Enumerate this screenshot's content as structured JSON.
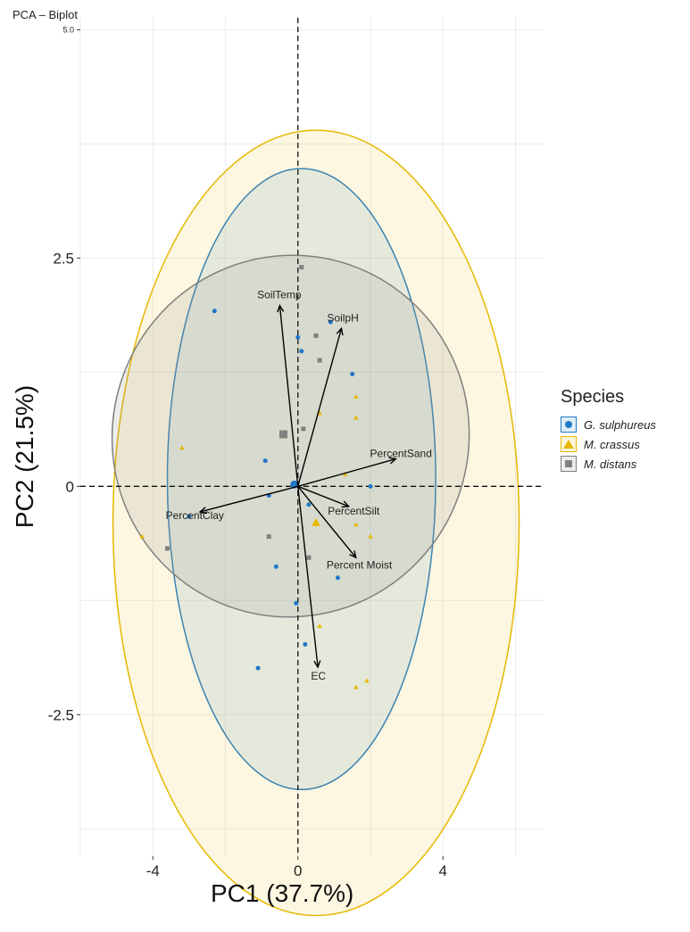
{
  "chart_data": {
    "type": "scatter",
    "subtype": "pca-biplot",
    "title": "PCA – Biplot",
    "xlabel": "PC1 (37.7%)",
    "ylabel": "PC2 (21.5%)",
    "xlim": [
      -6,
      6.8
    ],
    "ylim": [
      -4.05,
      5.15
    ],
    "x_ticks": [
      {
        "value": -4,
        "label": "-4"
      },
      {
        "value": 0,
        "label": "0"
      },
      {
        "value": 4,
        "label": "4"
      }
    ],
    "y_ticks": [
      {
        "value": -2.5,
        "label": "-2.5"
      },
      {
        "value": 0,
        "label": "0"
      },
      {
        "value": 2.5,
        "label": "2.5"
      },
      {
        "value": 5.0,
        "label": "5.0"
      }
    ],
    "grid": true,
    "reference_lines": {
      "x": 0,
      "y": 0,
      "style": "dashed"
    },
    "legend": {
      "title": "Species",
      "position": "right"
    },
    "series": [
      {
        "name": "G. sulphureus",
        "marker": "circle",
        "color": "#1f78c8",
        "mean": [
          -0.1,
          0.02
        ],
        "points": [
          [
            -2.3,
            1.92
          ],
          [
            0.0,
            1.63
          ],
          [
            0.1,
            1.48
          ],
          [
            0.9,
            1.8
          ],
          [
            1.5,
            1.23
          ],
          [
            -0.9,
            0.28
          ],
          [
            -0.8,
            -0.1
          ],
          [
            -3.0,
            -0.33
          ],
          [
            0.3,
            -0.2
          ],
          [
            2.0,
            0.0
          ],
          [
            1.1,
            -1.0
          ],
          [
            -0.6,
            -0.88
          ],
          [
            -0.05,
            -1.28
          ],
          [
            0.2,
            -1.73
          ],
          [
            -1.1,
            -1.99
          ]
        ],
        "ellipse": {
          "cx": 0.1,
          "cy": 0.08,
          "rx": 3.7,
          "ry": 3.4,
          "angle": 0
        }
      },
      {
        "name": "M. crassus",
        "marker": "triangle",
        "color": "#e6b800",
        "mean": [
          0.5,
          -0.4
        ],
        "points": [
          [
            -3.2,
            0.42
          ],
          [
            -4.3,
            -0.55
          ],
          [
            0.6,
            0.8
          ],
          [
            1.6,
            0.98
          ],
          [
            1.6,
            0.75
          ],
          [
            1.3,
            0.13
          ],
          [
            1.6,
            -0.42
          ],
          [
            2.0,
            -0.55
          ],
          [
            0.6,
            -1.53
          ],
          [
            1.6,
            -2.2
          ],
          [
            1.9,
            -2.13
          ]
        ],
        "ellipse": {
          "cx": 0.5,
          "cy": -0.4,
          "rx": 5.6,
          "ry": 4.3,
          "angle": 0
        }
      },
      {
        "name": "M. distans",
        "marker": "square",
        "color": "#808080",
        "mean": [
          -0.4,
          0.57
        ],
        "points": [
          [
            0.1,
            2.4
          ],
          [
            0.5,
            1.65
          ],
          [
            0.6,
            1.38
          ],
          [
            0.15,
            0.63
          ],
          [
            -0.8,
            -0.55
          ],
          [
            -3.6,
            -0.68
          ],
          [
            0.3,
            -0.78
          ]
        ],
        "ellipse": {
          "cx": -0.2,
          "cy": 0.55,
          "rx": 5.0,
          "ry": 1.95,
          "angle": 71
        }
      }
    ],
    "loadings": [
      {
        "name": "SoilTemp",
        "x": -0.5,
        "y": 1.98
      },
      {
        "name": "SoilpH",
        "x": 1.2,
        "y": 1.73
      },
      {
        "name": "PercentSand",
        "x": 2.7,
        "y": 0.3
      },
      {
        "name": "PercentClay",
        "x": -2.7,
        "y": -0.28
      },
      {
        "name": "PercentSilt",
        "x": 1.4,
        "y": -0.22
      },
      {
        "name": "Percent Moist",
        "x": 1.6,
        "y": -0.78
      },
      {
        "name": "EC",
        "x": 0.55,
        "y": -1.98
      }
    ]
  }
}
